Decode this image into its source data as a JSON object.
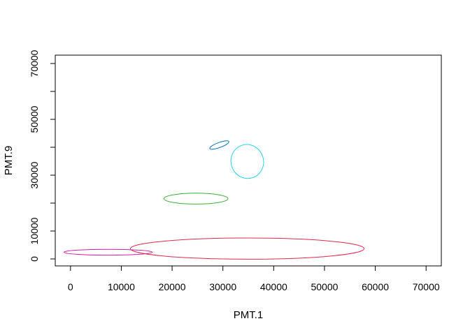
{
  "chart_data": {
    "type": "scatter",
    "title": "",
    "xlabel": "PMT.1",
    "ylabel": "PMT.9",
    "xlim": [
      -3000,
      73000
    ],
    "ylim": [
      -2500,
      73000
    ],
    "x_ticks": [
      0,
      10000,
      20000,
      30000,
      40000,
      50000,
      60000,
      70000
    ],
    "y_ticks": [
      0,
      10000,
      30000,
      50000,
      70000
    ],
    "y_tick_labels": [
      "0",
      "10000",
      "30000",
      "50000",
      "70000"
    ],
    "x_tick_labels": [
      "0",
      "10000",
      "20000",
      "30000",
      "40000",
      "50000",
      "60000",
      "70000"
    ],
    "grid": false,
    "legend": "none",
    "series": [
      {
        "color": "#0072B2",
        "cx": 29300,
        "cy": 40800,
        "rx": 2000,
        "ry": 900,
        "angle": 20
      },
      {
        "color": "#22D3EE",
        "cx": 34800,
        "cy": 34900,
        "rx": 3200,
        "ry": 6100,
        "angle": 18
      },
      {
        "color": "#35B233",
        "cx": 24700,
        "cy": 21600,
        "rx": 6300,
        "ry": 1950,
        "angle": 0
      },
      {
        "color": "#D11F9E",
        "cx": 7400,
        "cy": 2400,
        "rx": 8700,
        "ry": 1050,
        "angle": 0
      },
      {
        "color": "#E0294C",
        "cx": 34800,
        "cy": 3700,
        "rx": 23000,
        "ry": 3800,
        "angle": 0
      }
    ]
  }
}
